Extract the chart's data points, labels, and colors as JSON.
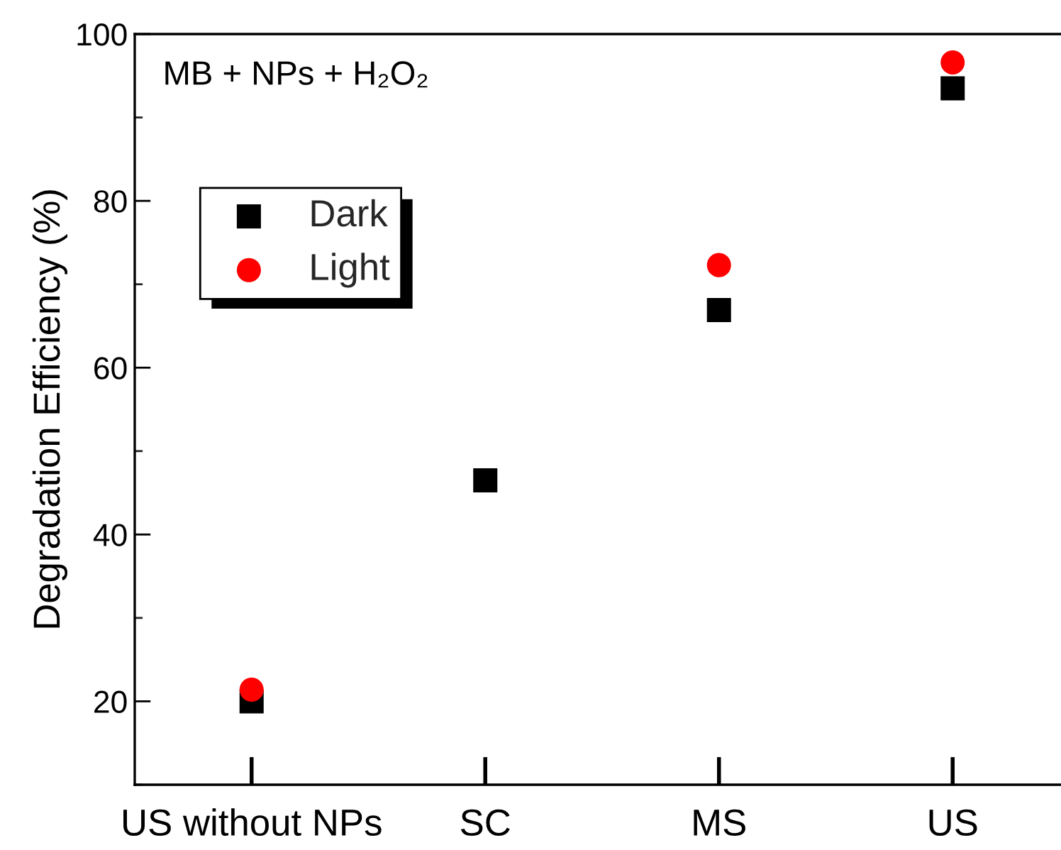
{
  "chart_data": {
    "type": "scatter",
    "ylabel": "Degradation Efficiency (%)",
    "annotations": [
      "MB + NPs + H₂O₂"
    ],
    "categories": [
      "US without NPs",
      "SC",
      "MS",
      "US"
    ],
    "series": [
      {
        "name": "Dark",
        "color": "#000000",
        "marker": "square",
        "values": [
          20.0,
          46.5,
          66.9,
          93.5
        ]
      },
      {
        "name": "Light",
        "color": "#ff0000",
        "marker": "circle",
        "values": [
          21.4,
          null,
          72.3,
          96.6
        ]
      }
    ],
    "ylim": [
      10,
      100
    ],
    "yticks": [
      20,
      40,
      60,
      80,
      100
    ],
    "grid": false,
    "legend": "top left"
  }
}
